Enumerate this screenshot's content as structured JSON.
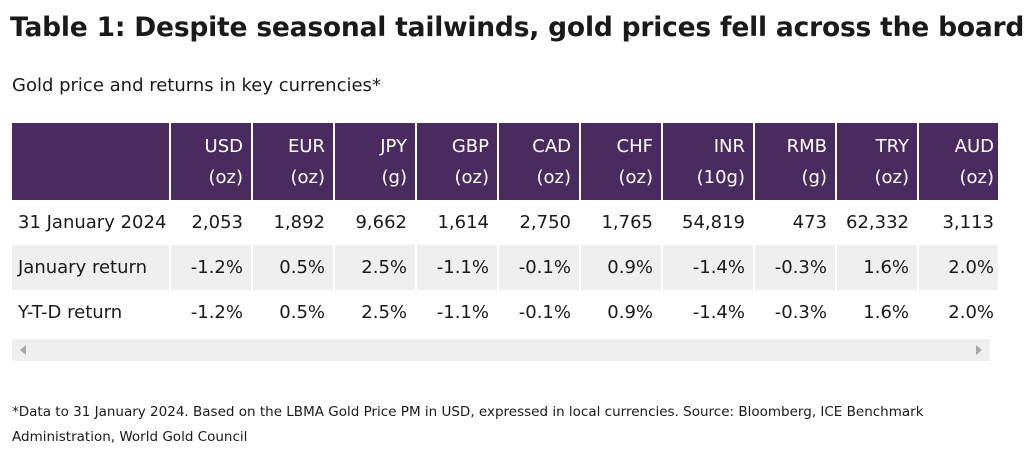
{
  "title": "Table 1: Despite seasonal tailwinds, gold prices fell across the board",
  "subtitle": "Gold price and returns in key currencies*",
  "table": {
    "headers": [
      {
        "code": "USD",
        "unit": "(oz)"
      },
      {
        "code": "EUR",
        "unit": "(oz)"
      },
      {
        "code": "JPY",
        "unit": "(g)"
      },
      {
        "code": "GBP",
        "unit": "(oz)"
      },
      {
        "code": "CAD",
        "unit": "(oz)"
      },
      {
        "code": "CHF",
        "unit": "(oz)"
      },
      {
        "code": "INR",
        "unit": "(10g)"
      },
      {
        "code": "RMB",
        "unit": "(g)"
      },
      {
        "code": "TRY",
        "unit": "(oz)"
      },
      {
        "code": "AUD",
        "unit": "(oz)"
      }
    ],
    "rows": [
      {
        "label": "31 January 2024",
        "values": [
          "2,053",
          "1,892",
          "9,662",
          "1,614",
          "2,750",
          "1,765",
          "54,819",
          "473",
          "62,332",
          "3,113"
        ]
      },
      {
        "label": "January return",
        "values": [
          "-1.2%",
          "0.5%",
          "2.5%",
          "-1.1%",
          "-0.1%",
          "0.9%",
          "-1.4%",
          "-0.3%",
          "1.6%",
          "2.0%"
        ]
      },
      {
        "label": "Y-T-D return",
        "values": [
          "-1.2%",
          "0.5%",
          "2.5%",
          "-1.1%",
          "-0.1%",
          "0.9%",
          "-1.4%",
          "-0.3%",
          "1.6%",
          "2.0%"
        ]
      }
    ]
  },
  "footnote": "*Data to 31 January 2024. Based on the LBMA Gold Price PM in USD, expressed in local currencies. Source: Bloomberg, ICE Benchmark Administration, World Gold Council",
  "colors": {
    "header_bg": "#4a2b60",
    "row_shade": "#efeff0"
  }
}
